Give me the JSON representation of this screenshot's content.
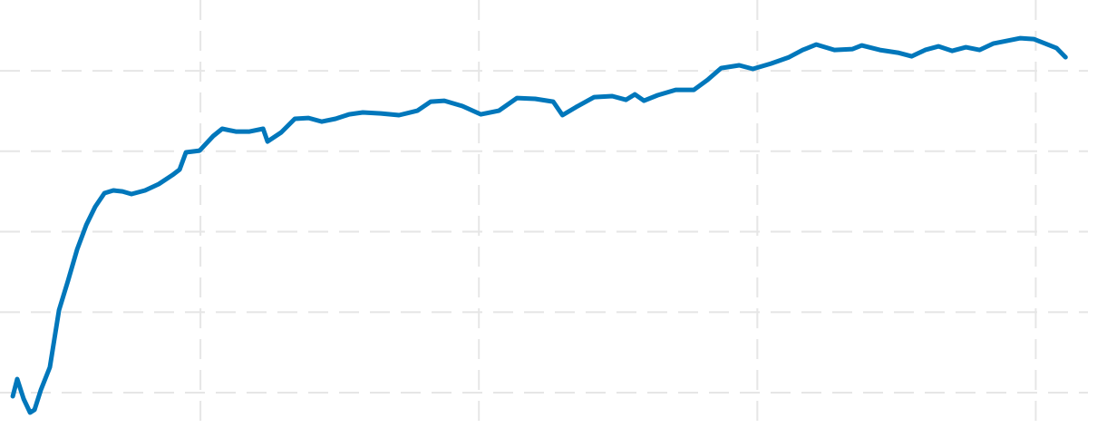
{
  "chart_data": {
    "type": "line",
    "grid": true,
    "color": "#0077bb",
    "xlim": [
      0.28,
      4.22
    ],
    "xticks": [
      1,
      2,
      3,
      4
    ],
    "ylim": [
      0.56,
      5.88
    ],
    "yticks": [
      1,
      2,
      3,
      4,
      5
    ],
    "x": [
      0.326,
      0.342,
      0.365,
      0.388,
      0.404,
      0.427,
      0.459,
      0.492,
      0.524,
      0.557,
      0.59,
      0.622,
      0.655,
      0.687,
      0.72,
      0.752,
      0.801,
      0.85,
      0.899,
      0.925,
      0.948,
      0.997,
      1.046,
      1.078,
      1.127,
      1.176,
      1.225,
      1.241,
      1.29,
      1.339,
      1.388,
      1.436,
      1.485,
      1.534,
      1.583,
      1.648,
      1.713,
      1.779,
      1.827,
      1.876,
      1.941,
      2.007,
      2.072,
      2.137,
      2.202,
      2.267,
      2.3,
      2.349,
      2.414,
      2.479,
      2.528,
      2.56,
      2.593,
      2.642,
      2.707,
      2.772,
      2.821,
      2.87,
      2.935,
      2.984,
      3.049,
      3.114,
      3.163,
      3.212,
      3.277,
      3.342,
      3.375,
      3.44,
      3.505,
      3.554,
      3.603,
      3.651,
      3.7,
      3.749,
      3.798,
      3.847,
      3.896,
      3.945,
      3.993,
      4.026,
      4.075,
      4.107
    ],
    "values": [
      0.955,
      1.169,
      0.921,
      0.752,
      0.786,
      1.034,
      1.315,
      2.025,
      2.386,
      2.78,
      3.085,
      3.31,
      3.479,
      3.513,
      3.501,
      3.468,
      3.513,
      3.592,
      3.704,
      3.772,
      3.986,
      4.008,
      4.189,
      4.279,
      4.245,
      4.245,
      4.279,
      4.121,
      4.234,
      4.403,
      4.414,
      4.369,
      4.403,
      4.459,
      4.482,
      4.47,
      4.448,
      4.504,
      4.617,
      4.628,
      4.561,
      4.459,
      4.504,
      4.662,
      4.651,
      4.617,
      4.448,
      4.549,
      4.673,
      4.685,
      4.639,
      4.707,
      4.628,
      4.696,
      4.763,
      4.763,
      4.887,
      5.034,
      5.068,
      5.023,
      5.09,
      5.169,
      5.259,
      5.327,
      5.259,
      5.27,
      5.315,
      5.259,
      5.225,
      5.18,
      5.259,
      5.304,
      5.248,
      5.293,
      5.259,
      5.338,
      5.372,
      5.406,
      5.394,
      5.349,
      5.282,
      5.169
    ]
  }
}
